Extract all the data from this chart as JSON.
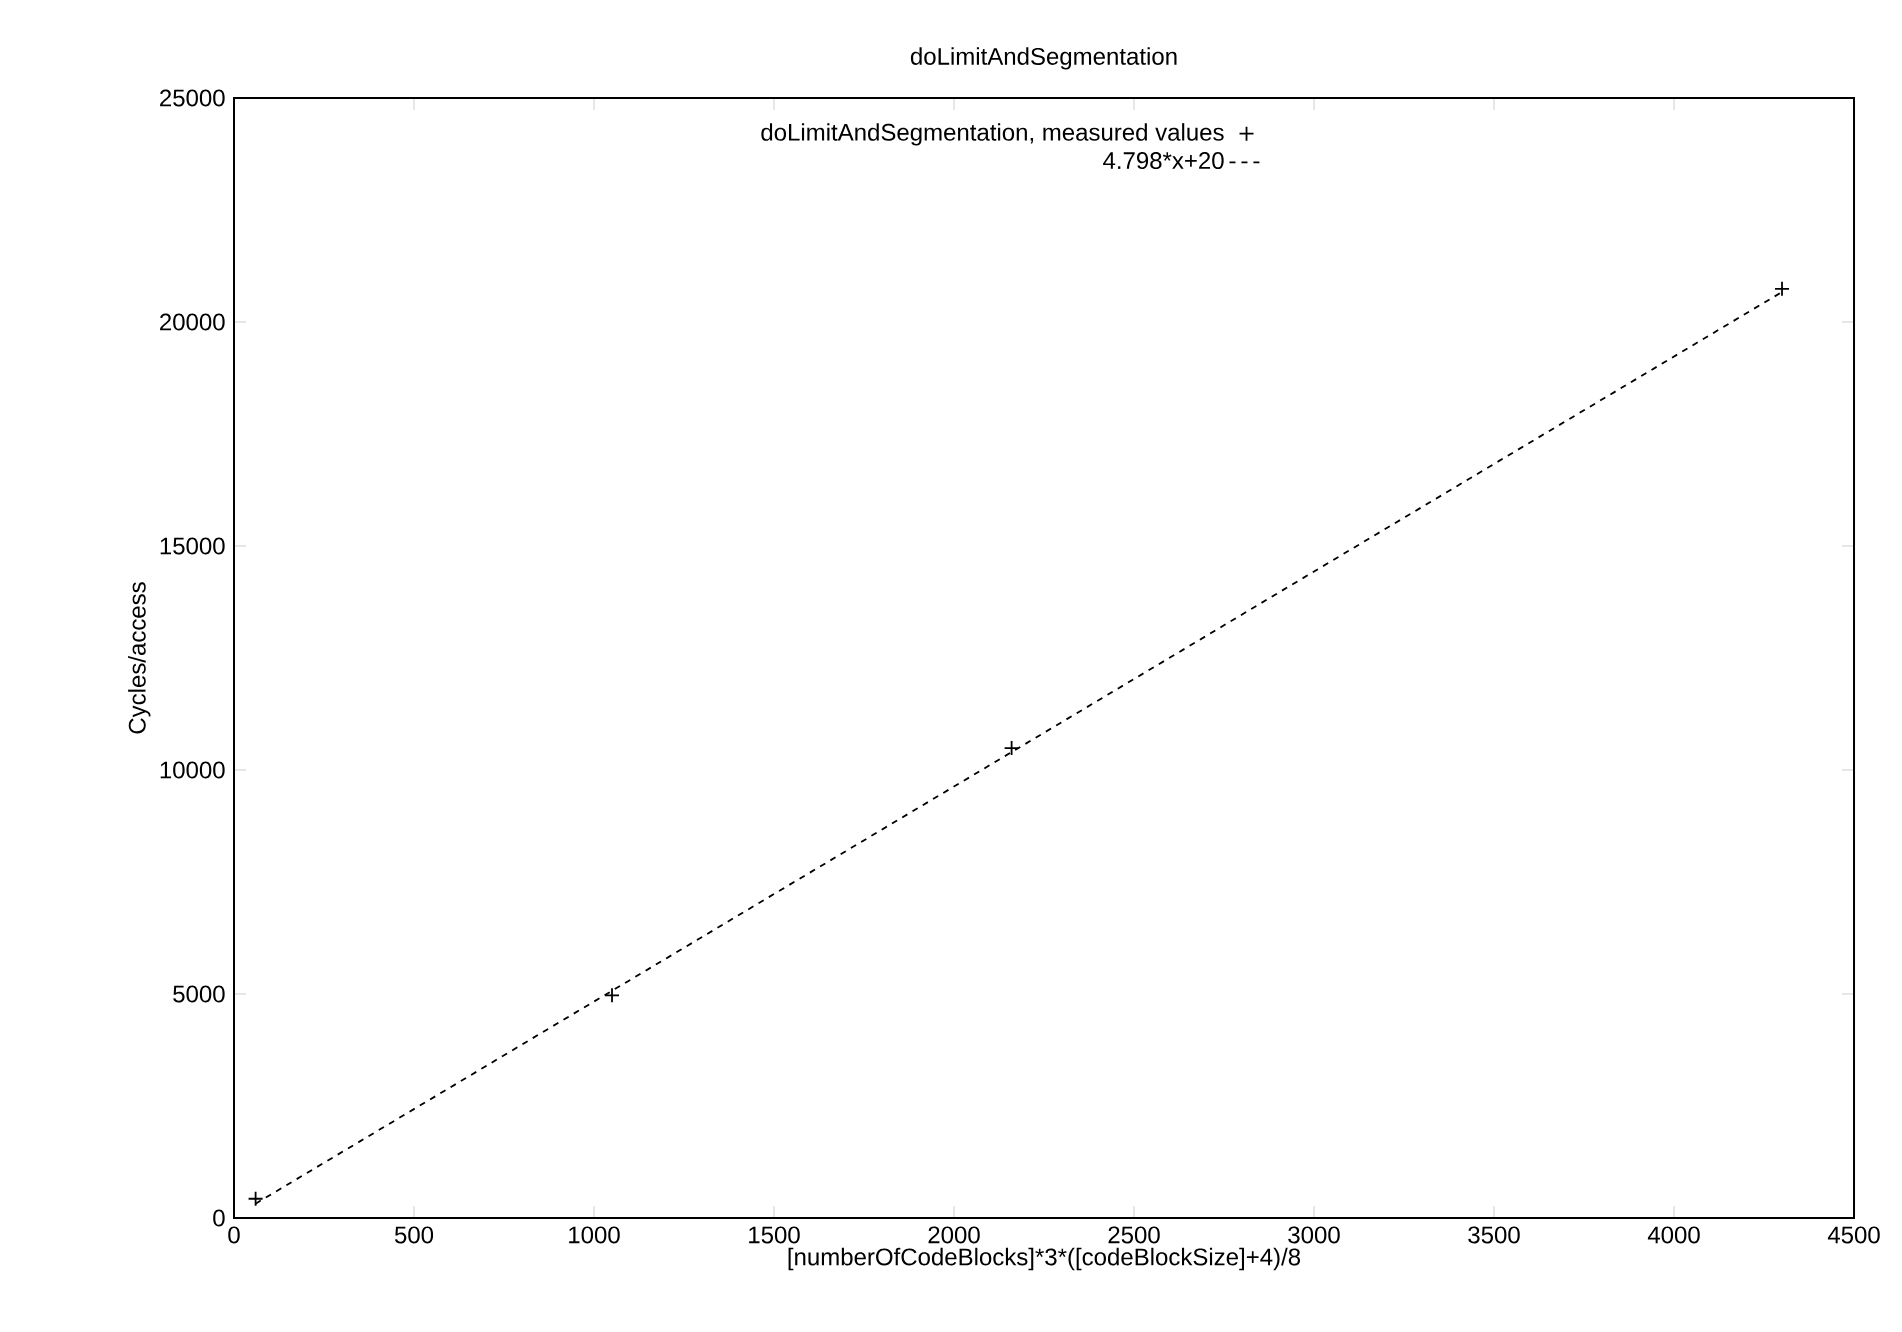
{
  "chart_data": {
    "type": "scatter",
    "title": "doLimitAndSegmentation",
    "xlabel": "[numberOfCodeBlocks]*3*([codeBlockSize]+4)/8",
    "ylabel": "Cycles/access",
    "series": [
      {
        "name": "doLimitAndSegmentation, measured values",
        "color": "#000000",
        "marker": "cross",
        "x": [
          60,
          1050,
          2160,
          4300
        ],
        "values": [
          430,
          4970,
          10490,
          20740
        ]
      },
      {
        "name": "4.798*x+20",
        "type": "line",
        "color": "#000000",
        "marker": "none",
        "line_style": "dashed",
        "x": [
          60,
          4300
        ],
        "values": [
          320,
          20670
        ]
      }
    ],
    "xlim": [
      0,
      4500
    ],
    "xticks": [
      0,
      500,
      1000,
      1500,
      2000,
      2500,
      3000,
      3500,
      4000,
      4500
    ],
    "ylim": [
      0,
      25000
    ],
    "yticks": [
      0,
      5000,
      10000,
      15000,
      20000,
      25000
    ],
    "grid": false,
    "legend": "top"
  }
}
